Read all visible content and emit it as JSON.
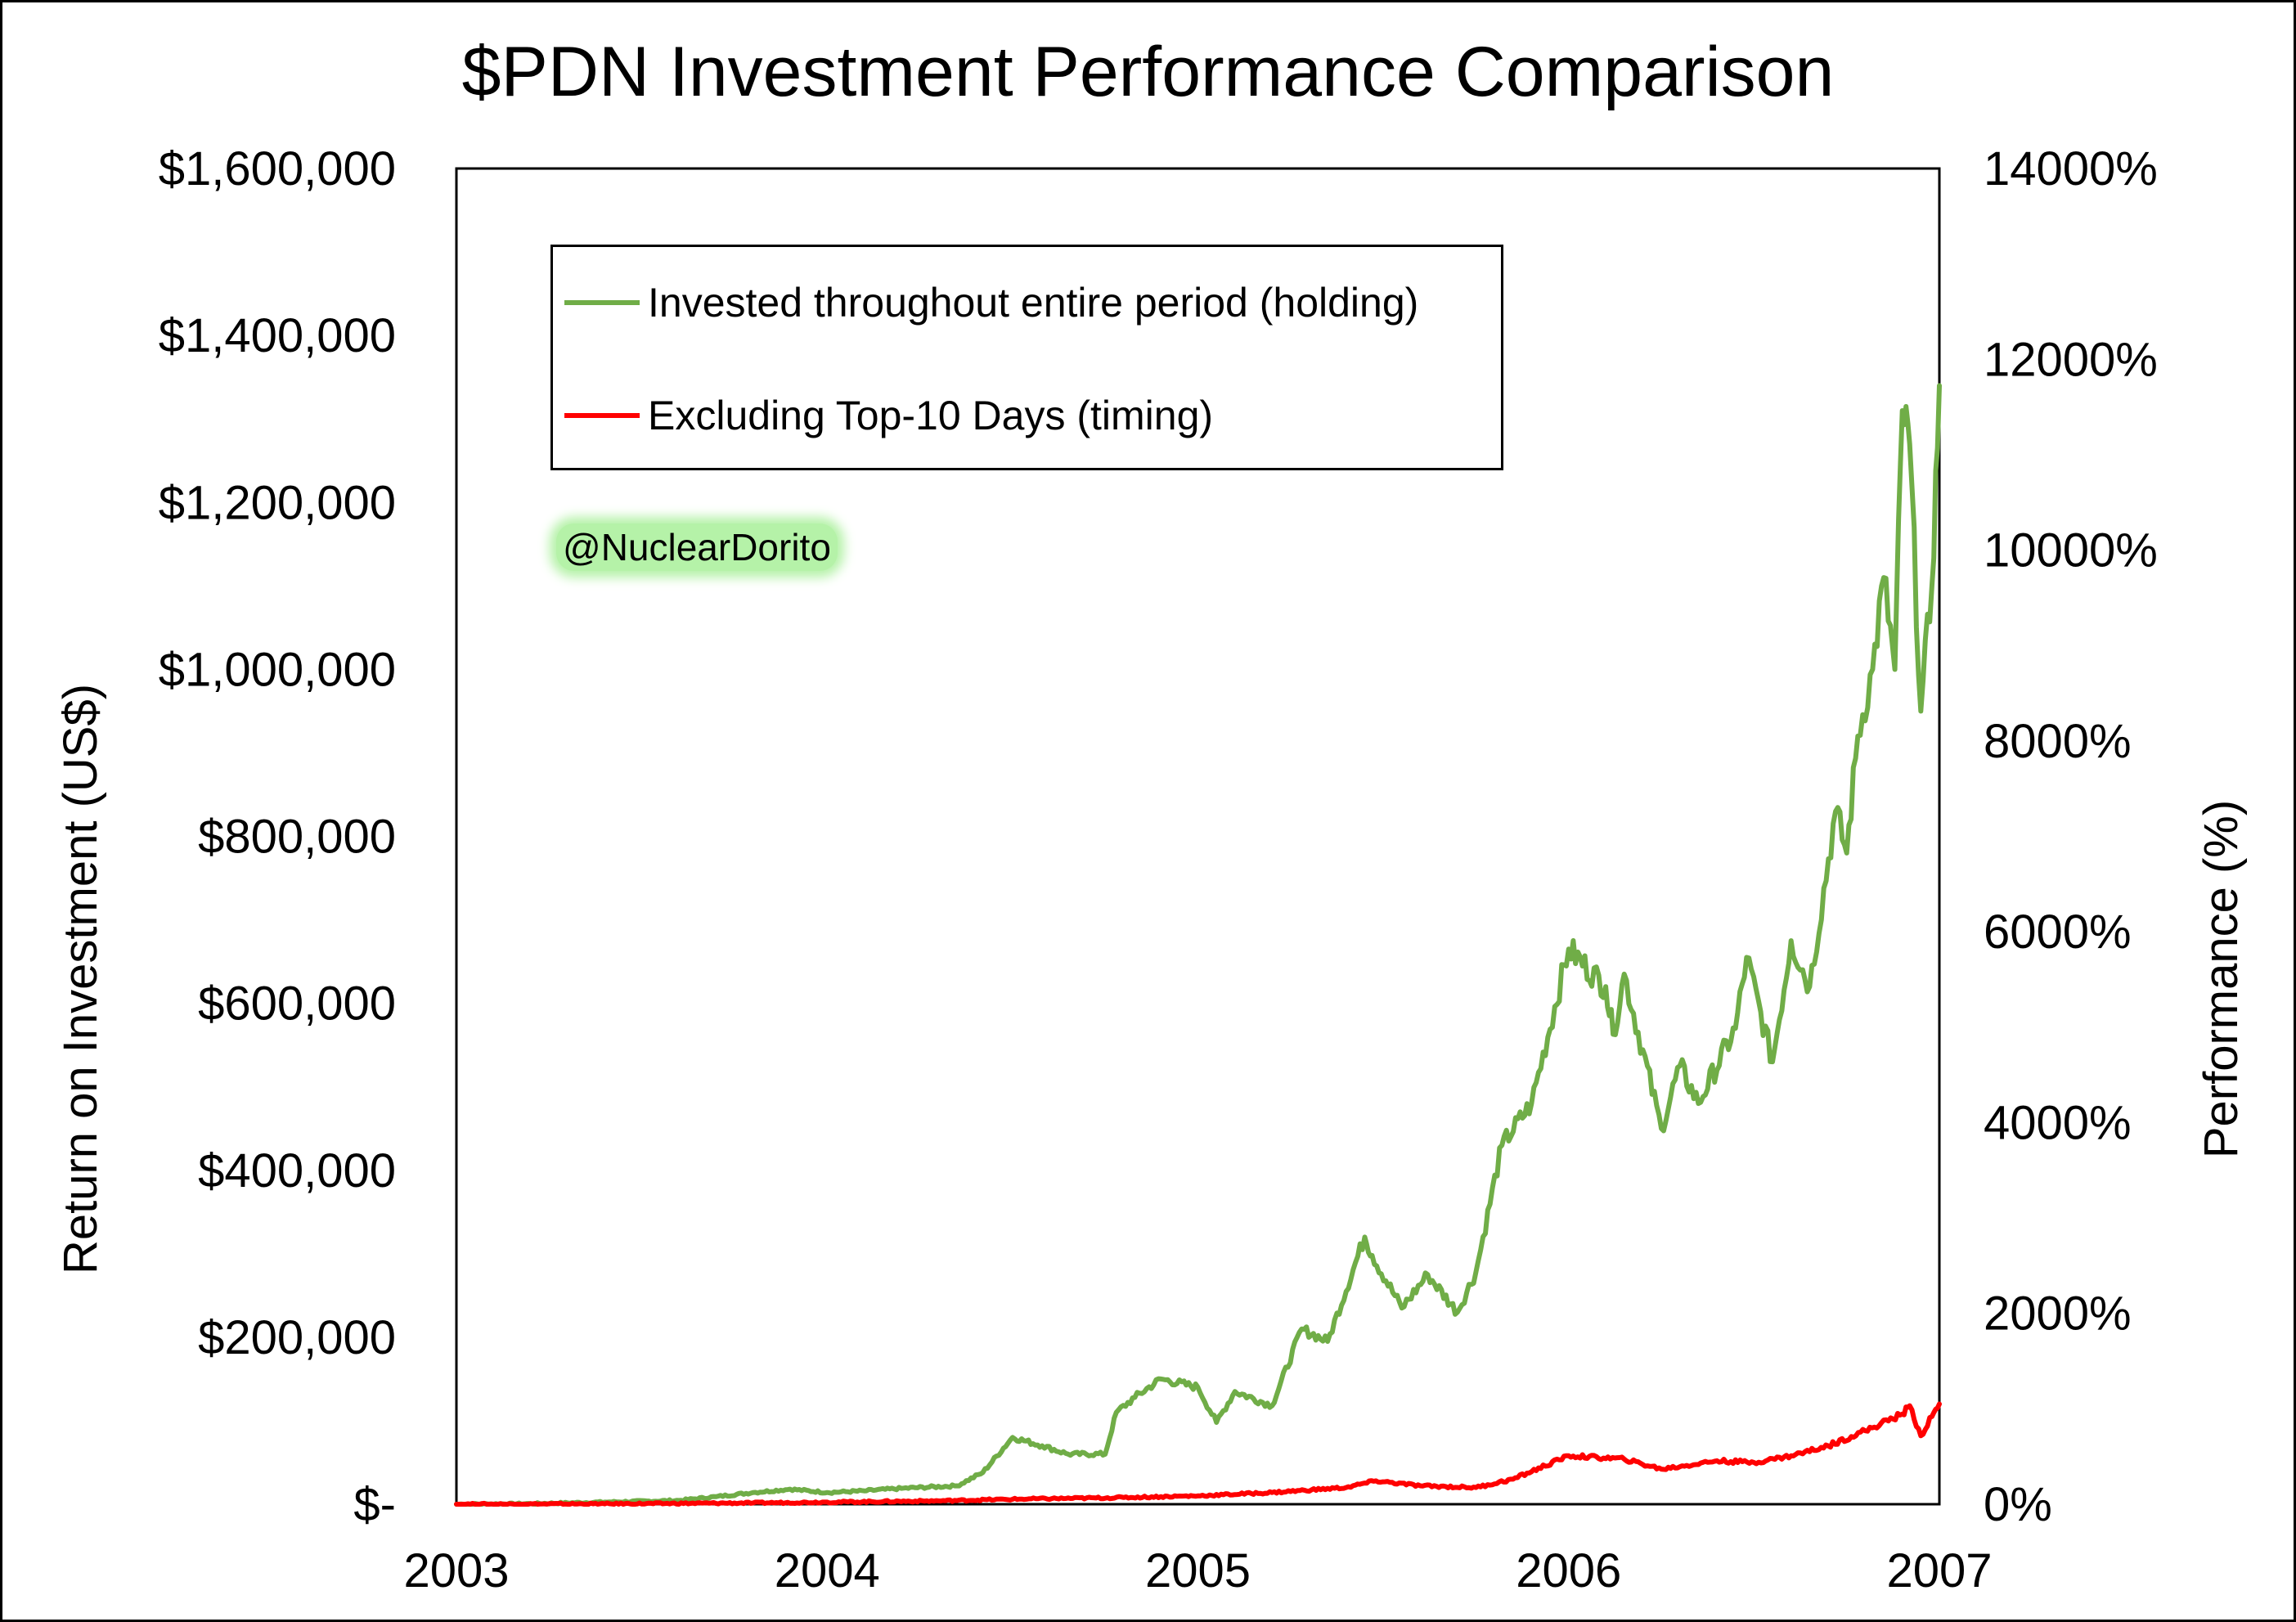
{
  "chart_data": {
    "type": "line",
    "title": "$PDN Investment Performance Comparison",
    "ylabel": "Return on Investment (US$)",
    "y2label": "Performance (%)",
    "xlabel": "",
    "xlim": [
      2003,
      2007
    ],
    "ylim": [
      0,
      1600000
    ],
    "y2lim": [
      0,
      14000
    ],
    "x_ticks": [
      "2003",
      "2004",
      "2005",
      "2006",
      "2007"
    ],
    "y_ticks": [
      "$-",
      "$200,000",
      "$400,000",
      "$600,000",
      "$800,000",
      "$1,000,000",
      "$1,200,000",
      "$1,400,000",
      "$1,600,000"
    ],
    "y2_ticks": [
      "0%",
      "2000%",
      "4000%",
      "6000%",
      "8000%",
      "10000%",
      "12000%",
      "14000%"
    ],
    "grid": false,
    "legend_position": "top-left",
    "series": [
      {
        "name": "Invested throughout entire period (holding)",
        "color": "#70ad47",
        "x": [
          2003.0,
          2003.2,
          2003.4,
          2003.6,
          2003.7,
          2003.8,
          2003.9,
          2004.0,
          2004.1,
          2004.2,
          2004.35,
          2004.42,
          2004.5,
          2004.58,
          2004.65,
          2004.75,
          2004.78,
          2004.83,
          2004.9,
          2005.0,
          2005.05,
          2005.1,
          2005.2,
          2005.28,
          2005.35,
          2005.45,
          2005.47,
          2005.55,
          2005.62,
          2005.7,
          2005.75,
          2005.82,
          2005.9,
          2006.0,
          2006.1,
          2006.12,
          2006.15,
          2006.25,
          2006.3,
          2006.35,
          2006.45,
          2006.48,
          2006.55,
          2006.6,
          2006.65,
          2006.72,
          2006.75,
          2006.78,
          2006.82,
          2006.85,
          2006.88,
          2006.9,
          2006.92,
          2006.95,
          2006.98,
          2007.0
        ],
        "values": [
          0,
          600,
          2500,
          4500,
          9000,
          14000,
          18000,
          14000,
          16000,
          19000,
          22000,
          38000,
          80000,
          70000,
          60000,
          60000,
          110000,
          128000,
          150000,
          140000,
          98000,
          135000,
          118000,
          210000,
          195000,
          320000,
          298000,
          235000,
          275000,
          230000,
          278000,
          430000,
          480000,
          665000,
          620000,
          563000,
          635000,
          450000,
          525000,
          480000,
          570000,
          655000,
          530000,
          675000,
          620000,
          830000,
          780000,
          920000,
          1000000,
          1110000,
          1000000,
          1310000,
          1270000,
          950000,
          1100000,
          1340000
        ]
      },
      {
        "name": "Excluding Top-10 Days (timing)",
        "color": "#ff0000",
        "x": [
          2003.0,
          2003.4,
          2003.8,
          2004.0,
          2004.3,
          2004.5,
          2004.8,
          2005.0,
          2005.2,
          2005.4,
          2005.48,
          2005.6,
          2005.75,
          2005.85,
          2006.0,
          2006.15,
          2006.25,
          2006.4,
          2006.5,
          2006.6,
          2006.7,
          2006.8,
          2006.9,
          2006.92,
          2006.95,
          2006.98,
          2007.0
        ],
        "values": [
          0,
          400,
          1500,
          2500,
          4000,
          6000,
          8000,
          10000,
          14000,
          20000,
          28000,
          22000,
          20000,
          30000,
          58000,
          54000,
          42000,
          52000,
          50000,
          58000,
          70000,
          88000,
          108000,
          118000,
          82000,
          105000,
          120000
        ]
      }
    ]
  },
  "watermark": "@NuclearDorito"
}
